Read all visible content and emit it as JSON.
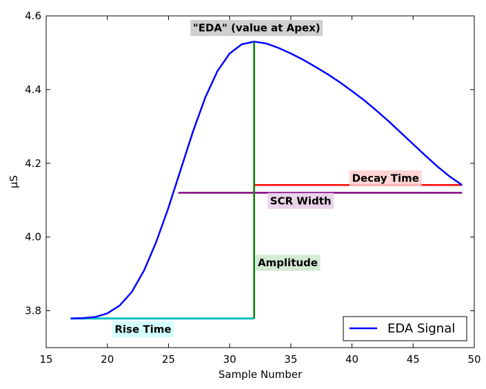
{
  "chart_data": {
    "type": "line",
    "xlabel": "Sample Number",
    "ylabel": "μS",
    "xlim": [
      15,
      50
    ],
    "ylim": [
      3.7,
      4.6
    ],
    "xticks": [
      15,
      20,
      25,
      30,
      35,
      40,
      45,
      50
    ],
    "yticks": [
      3.8,
      4.0,
      4.2,
      4.4,
      4.6
    ],
    "ytick_labels": [
      "3.8",
      "4.0",
      "4.2",
      "4.4",
      "4.6"
    ],
    "grid": false,
    "legend_position": "bottom-right",
    "series": [
      {
        "name": "EDA Signal",
        "color": "#0000ff",
        "x": [
          17,
          18,
          19,
          20,
          21,
          22,
          23,
          24,
          25,
          26,
          27,
          28,
          29,
          30,
          31,
          32,
          33,
          34,
          35,
          36,
          37,
          38,
          39,
          40,
          41,
          42,
          43,
          44,
          45,
          46,
          47,
          48,
          49
        ],
        "y": [
          3.779,
          3.78,
          3.783,
          3.793,
          3.814,
          3.851,
          3.909,
          3.987,
          4.08,
          4.183,
          4.286,
          4.378,
          4.45,
          4.498,
          4.523,
          4.53,
          4.525,
          4.513,
          4.498,
          4.481,
          4.462,
          4.442,
          4.42,
          4.396,
          4.371,
          4.343,
          4.314,
          4.283,
          4.252,
          4.221,
          4.191,
          4.164,
          4.141
        ]
      }
    ],
    "annotations": [
      {
        "label": "\"EDA\" (value at Apex)",
        "box_color": "#c8c8c8"
      },
      {
        "label": "Decay Time",
        "box_color": "#ffcccc"
      },
      {
        "label": "SCR Width",
        "box_color": "#e6cce6"
      },
      {
        "label": "Amplitude",
        "box_color": "#cce6cc"
      },
      {
        "label": "Rise Time",
        "box_color": "#ccffff"
      }
    ],
    "reference_lines": [
      {
        "name": "amplitude",
        "color": "#008000",
        "orientation": "vertical",
        "x": 32,
        "y_from": 3.779,
        "y_to": 4.53
      },
      {
        "name": "rise-time",
        "color": "#00bfbf",
        "orientation": "horizontal",
        "y": 3.779,
        "x_from": 17,
        "x_to": 32
      },
      {
        "name": "decay-time",
        "color": "#ff0000",
        "orientation": "horizontal",
        "y": 4.141,
        "x_from": 32,
        "x_to": 49
      },
      {
        "name": "scr-width",
        "color": "#800080",
        "orientation": "horizontal",
        "y": 4.12,
        "x_from": 25.8,
        "x_to": 49
      }
    ]
  }
}
